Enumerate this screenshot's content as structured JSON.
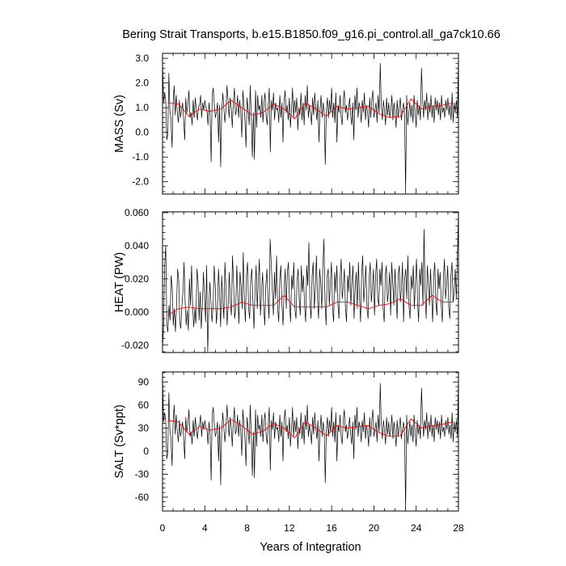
{
  "chart_data": {
    "title": "Bering Strait Transports, b.e15.B1850.f09_g16.pi_control.all_ga7ck10.66",
    "type": "line",
    "xlabel": "Years of Integration",
    "x_ticks": [
      "0",
      "4",
      "8",
      "12",
      "16",
      "20",
      "24",
      "28"
    ],
    "xlim": [
      0,
      28
    ],
    "colors": {
      "monthly": "#000000",
      "annual": "#ff0000"
    },
    "panels": [
      {
        "ylabel": "MASS (Sv)",
        "ylim": [
          -2.5,
          3.2
        ],
        "y_ticks": [
          -2.0,
          -1.0,
          0.0,
          1.0,
          2.0,
          3.0
        ],
        "y_tick_labels": [
          "-2.0",
          "-1.0",
          "0.0",
          "1.0",
          "2.0",
          "3.0"
        ],
        "annual": [
          1.2,
          1.15,
          0.65,
          0.95,
          0.85,
          0.95,
          1.3,
          1.0,
          0.7,
          0.8,
          1.15,
          0.95,
          0.55,
          1.2,
          0.95,
          0.65,
          1.05,
          0.95,
          1.0,
          1.05,
          0.75,
          0.6,
          0.65,
          1.35,
          0.95,
          1.05,
          1.1,
          1.2
        ],
        "monthly": [
          3.0,
          1.2,
          1.6,
          1.3,
          -0.3,
          -0.1,
          2.4,
          0.9,
          0.5,
          -0.6,
          1.1,
          1.9,
          0.7,
          1.5,
          0.8,
          0.4,
          1.3,
          0.6,
          0.9,
          1.2,
          0.5,
          -0.3,
          1.4,
          0.8,
          1.1,
          1.7,
          0.6,
          0.8,
          0.3,
          1.3,
          0.6,
          1.4,
          0.9,
          0.5,
          1.0,
          1.1,
          1.5,
          0.6,
          1.2,
          0.9,
          1.3,
          1.0,
          0.9,
          0.3,
          1.2,
          0.7,
          -1.2,
          1.5,
          1.8,
          1.1,
          0.6,
          0.8,
          1.2,
          -0.4,
          1.1,
          -1.4,
          0.8,
          1.6,
          1.0,
          0.4,
          0.9,
          1.9,
          1.3,
          0.6,
          1.4,
          1.0,
          0.2,
          1.2,
          1.8,
          0.7,
          0.9,
          1.5,
          0.6,
          1.3,
          0.8,
          -0.2,
          1.7,
          1.1,
          0.5,
          -0.6,
          1.4,
          0.9,
          0.3,
          1.9,
          0.6,
          -1.0,
          0.8,
          -1.1,
          1.7,
          0.2,
          1.5,
          0.9,
          1.1,
          0.6,
          1.5,
          0.4,
          1.2,
          1.6,
          0.7,
          0.3,
          1.1,
          1.8,
          -0.8,
          1.3,
          0.9,
          1.6,
          0.5,
          1.2,
          0.9,
          1.0,
          0.4,
          1.5,
          0.6,
          1.2,
          -0.4,
          1.3,
          1.7,
          0.8,
          1.1,
          0.5,
          1.4,
          0.2,
          0.9,
          1.8,
          0.6,
          1.3,
          0.8,
          1.4,
          0.1,
          1.0,
          0.7,
          1.6,
          0.5,
          1.2,
          0.3,
          1.5,
          0.9,
          1.9,
          0.6,
          1.1,
          0.8,
          0.3,
          1.4,
          0.7,
          1.6,
          1.0,
          0.5,
          1.3,
          -0.4,
          0.9,
          1.5,
          0.6,
          1.2,
          0.8,
          -1.3,
          0.9,
          1.4,
          0.6,
          1.3,
          0.8,
          1.8,
          0.6,
          1.2,
          0.4,
          1.6,
          -0.4,
          1.1,
          0.8,
          1.5,
          0.6,
          0.3,
          1.3,
          1.7,
          0.8,
          1.1,
          0.5,
          0.9,
          1.4,
          0.7,
          0.3,
          1.2,
          -0.3,
          1.5,
          0.9,
          1.8,
          0.6,
          1.2,
          1.0,
          0.4,
          1.3,
          0.8,
          1.6,
          0.5,
          1.1,
          0.8,
          0.2,
          1.4,
          0.6,
          1.3,
          1.7,
          0.6,
          0.9,
          1.2,
          0.4,
          1.5,
          0.8,
          2.8,
          1.1,
          0.5,
          1.3,
          0.9,
          0.3,
          1.4,
          0.7,
          1.2,
          0.6,
          0.9,
          1.5,
          0.5,
          1.2,
          0.8,
          0.2,
          1.3,
          0.6,
          1.0,
          1.4,
          0.5,
          0.9,
          1.2,
          0.7,
          -2.4,
          1.5,
          0.3,
          0.8,
          1.2,
          0.6,
          1.1,
          0.4,
          1.5,
          0.8,
          0.2,
          1.3,
          0.7,
          1.1,
          0.5,
          2.6,
          1.4,
          0.6,
          1.3,
          0.9,
          1.6,
          0.5,
          1.2,
          0.8,
          1.5,
          0.6,
          1.1,
          0.4,
          1.4,
          0.9,
          1.3,
          0.7,
          1.2,
          0.5,
          1.5,
          0.8,
          1.0,
          0.6,
          1.3,
          0.9,
          1.4,
          0.7,
          1.1,
          0.5,
          1.6,
          0.4,
          1.2,
          0.8,
          1.3,
          0.6,
          3.1
        ]
      },
      {
        "ylabel": "HEAT (PW)",
        "ylim": [
          -0.0245,
          0.0605
        ],
        "y_ticks": [
          -0.02,
          0.0,
          0.02,
          0.04,
          0.06
        ],
        "y_tick_labels": [
          "-0.020",
          "0.000",
          "0.020",
          "0.040",
          "0.060"
        ],
        "annual": [
          -0.002,
          0.002,
          0.003,
          0.002,
          0.002,
          0.002,
          0.003,
          0.006,
          0.004,
          0.004,
          0.004,
          0.01,
          0.003,
          0.003,
          0.003,
          0.003,
          0.006,
          0.006,
          0.004,
          0.002,
          0.004,
          0.005,
          0.008,
          0.004,
          0.004,
          0.01,
          0.006,
          0.006
        ],
        "monthly": [
          -0.022,
          -0.008,
          0.028,
          0.04,
          -0.008,
          -0.012,
          0.004,
          -0.005,
          0.022,
          0.015,
          -0.008,
          0.002,
          -0.012,
          0.003,
          0.026,
          0.02,
          -0.006,
          -0.01,
          0.004,
          0.012,
          0.03,
          0.006,
          -0.008,
          0.001,
          -0.011,
          0.02,
          0.004,
          0.028,
          0.003,
          -0.009,
          0.002,
          -0.007,
          0.026,
          0.019,
          -0.005,
          0.012,
          -0.01,
          0.004,
          0.024,
          0.01,
          -0.006,
          0.028,
          -0.024,
          0.002,
          0.018,
          0.006,
          -0.006,
          0.004,
          0.028,
          0.016,
          -0.007,
          0.001,
          0.026,
          0.012,
          -0.009,
          0.022,
          0.008,
          -0.004,
          0.03,
          0.014,
          -0.008,
          0.004,
          0.024,
          0.006,
          -0.002,
          0.034,
          0.018,
          -0.004,
          0.002,
          0.028,
          0.01,
          -0.007,
          0.024,
          0.016,
          0.002,
          0.036,
          0.008,
          -0.006,
          0.022,
          0.03,
          0.002,
          -0.004,
          0.02,
          0.026,
          0.006,
          -0.01,
          0.014,
          0.028,
          0.002,
          0.018,
          0.032,
          -0.002,
          0.012,
          0.024,
          0.004,
          -0.008,
          0.016,
          0.026,
          0.008,
          -0.004,
          0.044,
          0.03,
          0.014,
          -0.002,
          0.024,
          0.008,
          0.034,
          0.002,
          -0.006,
          0.02,
          0.028,
          0.004,
          -0.008,
          0.014,
          0.026,
          0.002,
          0.024,
          0.03,
          0.006,
          -0.006,
          0.022,
          0.014,
          0.03,
          0.002,
          -0.004,
          0.018,
          0.026,
          0.008,
          -0.002,
          0.028,
          0.012,
          0.022,
          0.004,
          -0.006,
          0.028,
          0.016,
          0.042,
          0.006,
          -0.004,
          0.022,
          0.03,
          0.002,
          0.014,
          0.034,
          0.008,
          -0.004,
          0.026,
          0.018,
          0.002,
          0.028,
          0.044,
          0.006,
          -0.008,
          0.022,
          0.026,
          0.004,
          0.018,
          0.03,
          0.002,
          -0.006,
          0.024,
          0.012,
          0.028,
          0.004,
          -0.004,
          0.02,
          0.032,
          0.008,
          0.016,
          0.026,
          0.002,
          -0.006,
          0.022,
          0.012,
          0.03,
          0.004,
          0.018,
          0.028,
          -0.004,
          0.014,
          0.024,
          0.002,
          0.03,
          0.01,
          -0.006,
          0.022,
          0.034,
          0.006,
          0.016,
          0.028,
          0.002,
          -0.004,
          0.02,
          0.03,
          0.006,
          0.014,
          0.026,
          -0.002,
          0.022,
          0.032,
          0.008,
          0.004,
          0.026,
          0.016,
          0.03,
          0.002,
          -0.006,
          0.022,
          0.028,
          0.006,
          0.012,
          0.024,
          -0.002,
          0.03,
          0.016,
          0.004,
          0.026,
          0.01,
          -0.004,
          0.022,
          0.028,
          0.006,
          0.014,
          0.03,
          -0.006,
          0.02,
          0.026,
          0.008,
          0.034,
          0.004,
          -0.004,
          0.022,
          0.014,
          0.028,
          0.002,
          0.018,
          0.032,
          0.006,
          -0.006,
          0.026,
          0.016,
          0.03,
          0.004,
          0.05,
          0.012,
          -0.004,
          0.028,
          0.018,
          0.004,
          0.026,
          0.01,
          -0.006,
          0.022,
          0.03,
          0.006,
          -0.002,
          0.026,
          0.014,
          0.024,
          0.004,
          -0.006,
          0.02,
          0.032,
          0.008,
          0.016,
          0.028,
          0.002,
          -0.004,
          0.022,
          0.03,
          0.006,
          0.012,
          0.026,
          0.008,
          0.034,
          0.06
        ]
      },
      {
        "ylabel": "SALT (Sv*ppt)",
        "ylim": [
          -78,
          103
        ],
        "y_ticks": [
          -60,
          -30,
          0,
          30,
          60,
          90
        ],
        "y_tick_labels": [
          "-60",
          "-30",
          "0",
          "30",
          "60",
          "90"
        ],
        "annual": [
          40,
          38,
          22,
          32,
          27,
          30,
          41,
          33,
          22,
          26,
          36,
          30,
          17,
          38,
          30,
          20,
          33,
          30,
          32,
          33,
          24,
          19,
          20,
          42,
          30,
          33,
          35,
          38
        ],
        "monthly": [
          96,
          38,
          50,
          40,
          -10,
          -2,
          76,
          28,
          16,
          -19,
          34,
          60,
          22,
          47,
          25,
          12,
          40,
          19,
          28,
          38,
          16,
          -10,
          44,
          25,
          35,
          54,
          19,
          25,
          9,
          40,
          19,
          44,
          28,
          16,
          31,
          34,
          47,
          19,
          38,
          28,
          40,
          31,
          28,
          9,
          38,
          22,
          -38,
          47,
          57,
          34,
          19,
          25,
          38,
          -13,
          34,
          -44,
          25,
          50,
          31,
          12,
          28,
          60,
          40,
          19,
          44,
          31,
          6,
          38,
          57,
          22,
          28,
          47,
          19,
          40,
          25,
          -6,
          54,
          34,
          16,
          -19,
          44,
          28,
          9,
          60,
          19,
          -32,
          25,
          -35,
          54,
          6,
          47,
          28,
          34,
          19,
          47,
          12,
          38,
          50,
          22,
          9,
          34,
          57,
          -25,
          40,
          28,
          50,
          16,
          38,
          28,
          31,
          12,
          47,
          19,
          38,
          -13,
          40,
          54,
          25,
          34,
          16,
          44,
          6,
          28,
          57,
          19,
          40,
          25,
          44,
          3,
          31,
          22,
          50,
          16,
          38,
          9,
          47,
          28,
          60,
          19,
          34,
          25,
          9,
          44,
          22,
          50,
          31,
          16,
          40,
          -13,
          28,
          47,
          19,
          38,
          25,
          -41,
          28,
          44,
          19,
          40,
          25,
          57,
          19,
          38,
          12,
          50,
          -13,
          34,
          25,
          47,
          19,
          9,
          40,
          54,
          25,
          34,
          16,
          28,
          44,
          22,
          9,
          38,
          -10,
          47,
          28,
          57,
          19,
          38,
          31,
          12,
          40,
          25,
          50,
          16,
          34,
          25,
          6,
          44,
          19,
          40,
          54,
          19,
          28,
          38,
          12,
          47,
          25,
          88,
          34,
          16,
          40,
          28,
          9,
          44,
          22,
          38,
          19,
          28,
          47,
          16,
          38,
          25,
          6,
          40,
          19,
          31,
          44,
          16,
          28,
          38,
          22,
          -76,
          47,
          9,
          25,
          38,
          19,
          34,
          12,
          47,
          25,
          6,
          40,
          22,
          34,
          16,
          82,
          44,
          19,
          40,
          28,
          50,
          16,
          38,
          25,
          47,
          19,
          34,
          12,
          44,
          28,
          40,
          22,
          38,
          16,
          47,
          25,
          31,
          19,
          40,
          28,
          44,
          22,
          34,
          16,
          50,
          12,
          38,
          25,
          40,
          19,
          98
        ]
      }
    ]
  }
}
